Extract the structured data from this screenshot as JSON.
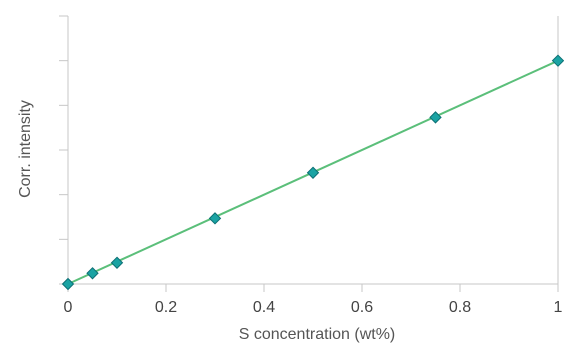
{
  "chart_data": {
    "type": "scatter",
    "title": "",
    "xlabel": "S concentration (wt%)",
    "ylabel": "Corr. intensity",
    "xlim": [
      0,
      1
    ],
    "ylim": [
      0,
      1.2
    ],
    "x_ticks": [
      "0",
      "0.2",
      "0.4",
      "0.6",
      "0.8",
      "1"
    ],
    "y_ticks_labeled": false,
    "y_tick_count": 7,
    "grid": false,
    "legend": "none",
    "series": [
      {
        "x": [
          0,
          0.05,
          0.1,
          0.3,
          0.5,
          0.75,
          1.0
        ],
        "y": [
          0.0,
          0.048,
          0.095,
          0.294,
          0.498,
          0.746,
          1.0
        ],
        "marker": "diamond",
        "marker_color": "#1aa3a3"
      }
    ],
    "fit_line": {
      "from": [
        0,
        0
      ],
      "to": [
        1,
        1
      ],
      "color": "#5bbf7a"
    }
  }
}
